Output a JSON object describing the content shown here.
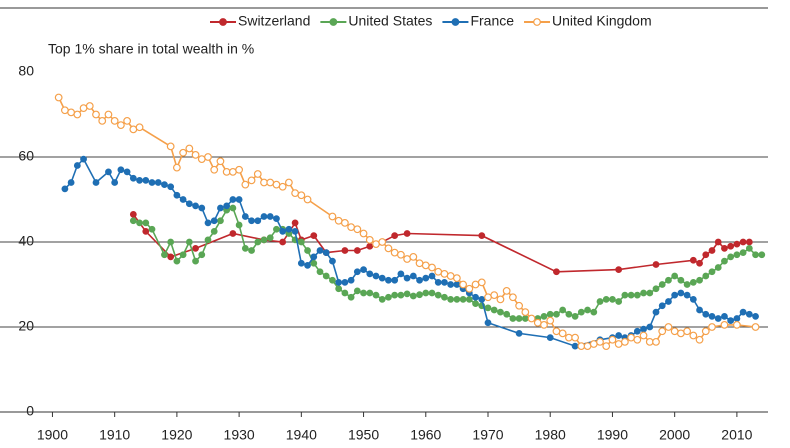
{
  "chart_data": {
    "type": "line",
    "y_label": "Top 1% share in total wealth in %",
    "xlim": [
      1898,
      2015
    ],
    "xticks": [
      1900,
      1910,
      1920,
      1930,
      1940,
      1950,
      1960,
      1970,
      1980,
      1990,
      2000,
      2010
    ],
    "ylim": [
      0,
      80
    ],
    "yticks": [
      0,
      20,
      40,
      60,
      80
    ],
    "grid": true,
    "legend": "top",
    "series": [
      {
        "name": "Switzerland",
        "color": "#c0282d",
        "marker": "filled",
        "x": [
          1913,
          1915,
          1919,
          1923,
          1929,
          1934,
          1937,
          1939,
          1940,
          1942,
          1944,
          1947,
          1949,
          1951,
          1953,
          1955,
          1957,
          1969,
          1981,
          1991,
          1997,
          2003,
          2004,
          2005,
          2006,
          2007,
          2008,
          2009,
          2010,
          2011,
          2012
        ],
        "values": [
          46.5,
          42.5,
          36.5,
          38.5,
          42,
          40.5,
          40,
          44.5,
          40.5,
          41.5,
          37.5,
          38,
          38,
          39,
          40,
          41.5,
          42,
          41.5,
          33,
          33.5,
          34.7,
          35.7,
          35,
          37,
          38,
          40,
          38.5,
          39,
          39.5,
          40,
          40
        ]
      },
      {
        "name": "United States",
        "color": "#5aa655",
        "marker": "filled",
        "x": [
          1913,
          1914,
          1915,
          1916,
          1918,
          1919,
          1920,
          1921,
          1922,
          1923,
          1924,
          1925,
          1926,
          1927,
          1928,
          1929,
          1930,
          1931,
          1932,
          1933,
          1934,
          1935,
          1936,
          1937,
          1938,
          1939,
          1940,
          1941,
          1942,
          1943,
          1944,
          1945,
          1946,
          1947,
          1948,
          1949,
          1950,
          1951,
          1952,
          1953,
          1954,
          1955,
          1956,
          1957,
          1958,
          1959,
          1960,
          1961,
          1962,
          1963,
          1964,
          1965,
          1966,
          1967,
          1968,
          1969,
          1970,
          1971,
          1972,
          1973,
          1974,
          1975,
          1976,
          1977,
          1978,
          1979,
          1980,
          1981,
          1982,
          1983,
          1984,
          1985,
          1986,
          1987,
          1988,
          1989,
          1990,
          1991,
          1992,
          1993,
          1994,
          1995,
          1996,
          1997,
          1998,
          1999,
          2000,
          2001,
          2002,
          2003,
          2004,
          2005,
          2006,
          2007,
          2008,
          2009,
          2010,
          2011,
          2012,
          2013,
          2014
        ],
        "values": [
          45,
          44.5,
          44.5,
          43,
          37,
          40,
          35.5,
          37,
          40,
          35.5,
          37,
          40.5,
          42.5,
          45,
          47.5,
          48,
          44,
          38.5,
          38,
          40,
          40.5,
          41,
          43,
          43,
          42,
          40.5,
          40,
          38,
          35,
          33,
          32,
          31,
          29,
          28,
          27,
          28.5,
          28,
          28,
          27.5,
          26.5,
          27,
          27.5,
          27.5,
          27.8,
          27.3,
          27.6,
          28,
          28,
          27.5,
          27,
          26.5,
          26.5,
          26.5,
          26.5,
          25.5,
          25,
          24.5,
          24,
          23.5,
          23,
          22,
          22,
          22,
          22,
          22,
          22.5,
          23,
          23,
          24,
          23,
          22.5,
          23.5,
          24,
          23.5,
          26,
          26.5,
          26.5,
          26,
          27.5,
          27.5,
          27.5,
          28,
          28,
          29,
          30,
          31,
          32,
          31,
          30,
          30.5,
          31,
          32,
          33,
          34,
          35.5,
          36.5,
          37,
          37.5,
          38.5,
          37,
          37
        ]
      },
      {
        "name": "France",
        "color": "#1f6fb4",
        "marker": "filled",
        "x": [
          1902,
          1903,
          1904,
          1905,
          1907,
          1909,
          1910,
          1911,
          1912,
          1913,
          1914,
          1915,
          1916,
          1917,
          1918,
          1919,
          1920,
          1921,
          1922,
          1923,
          1924,
          1925,
          1926,
          1927,
          1928,
          1929,
          1930,
          1931,
          1932,
          1933,
          1934,
          1935,
          1936,
          1937,
          1938,
          1939,
          1940,
          1941,
          1942,
          1943,
          1944,
          1945,
          1946,
          1947,
          1948,
          1949,
          1950,
          1951,
          1952,
          1953,
          1954,
          1955,
          1956,
          1957,
          1958,
          1959,
          1960,
          1961,
          1962,
          1963,
          1964,
          1965,
          1966,
          1967,
          1968,
          1969,
          1970,
          1975,
          1980,
          1984,
          1988,
          1990,
          1991,
          1992,
          1993,
          1994,
          1995,
          1996,
          1997,
          1998,
          1999,
          2000,
          2001,
          2002,
          2003,
          2004,
          2005,
          2006,
          2007,
          2008,
          2009,
          2010,
          2011,
          2012,
          2013
        ],
        "values": [
          52.5,
          54,
          58,
          59.5,
          54,
          56.5,
          54,
          57,
          56.5,
          55,
          54.5,
          54.5,
          54,
          54,
          53.5,
          53,
          51,
          50,
          49,
          48.5,
          48,
          44.5,
          45,
          48,
          48.5,
          50,
          50,
          46,
          45,
          45,
          46,
          46,
          45.5,
          42.5,
          43,
          42.5,
          35,
          34.5,
          36.5,
          38,
          37.5,
          35.5,
          30.5,
          30.5,
          31,
          33,
          33.5,
          32.5,
          32,
          31.5,
          31,
          31,
          32.5,
          31.5,
          32,
          31,
          31.5,
          32,
          30.5,
          30.5,
          30,
          30,
          29,
          28,
          27,
          26.5,
          21,
          18.5,
          17.5,
          15.5,
          17,
          17.5,
          18,
          17.5,
          18,
          19,
          19.5,
          20,
          23.5,
          25,
          26,
          27.5,
          28,
          27.5,
          26.5,
          24,
          23,
          22.5,
          22,
          22.5,
          21.5,
          22,
          23.5,
          23,
          22.5
        ]
      },
      {
        "name": "United Kingdom",
        "color": "#f5a04a",
        "marker": "open",
        "x": [
          1901,
          1902,
          1903,
          1904,
          1905,
          1906,
          1907,
          1908,
          1909,
          1910,
          1911,
          1912,
          1913,
          1914,
          1919,
          1920,
          1921,
          1922,
          1923,
          1924,
          1925,
          1926,
          1927,
          1928,
          1929,
          1930,
          1931,
          1932,
          1933,
          1934,
          1935,
          1936,
          1937,
          1938,
          1939,
          1940,
          1941,
          1945,
          1946,
          1947,
          1948,
          1949,
          1950,
          1951,
          1952,
          1953,
          1954,
          1955,
          1956,
          1957,
          1958,
          1959,
          1960,
          1961,
          1962,
          1963,
          1964,
          1965,
          1966,
          1967,
          1968,
          1969,
          1970,
          1971,
          1972,
          1973,
          1974,
          1975,
          1976,
          1977,
          1978,
          1979,
          1980,
          1981,
          1982,
          1983,
          1984,
          1985,
          1986,
          1987,
          1988,
          1989,
          1990,
          1991,
          1992,
          1993,
          1994,
          1995,
          1996,
          1997,
          1998,
          1999,
          2000,
          2001,
          2002,
          2003,
          2004,
          2005,
          2006,
          2008,
          2010,
          2013
        ],
        "values": [
          74,
          71,
          70.5,
          70,
          71.5,
          72,
          70,
          68.5,
          70,
          68.5,
          67.5,
          68.5,
          66.5,
          67,
          62.5,
          57.5,
          61,
          62,
          60.5,
          59.5,
          60,
          57,
          59,
          56.5,
          56.5,
          57,
          53.5,
          54.5,
          56,
          54,
          54,
          53.5,
          53,
          54,
          51.5,
          51,
          50,
          46,
          45,
          44.5,
          43.5,
          43,
          42,
          40.5,
          39.5,
          40,
          38.5,
          37.5,
          37,
          36,
          36.5,
          35,
          34.5,
          34,
          33,
          32.5,
          32,
          31.5,
          30,
          29,
          30,
          30.5,
          27,
          27.5,
          26.5,
          28.5,
          27,
          25,
          23.5,
          22,
          21,
          20.5,
          21.5,
          19,
          18.5,
          17.5,
          17.5,
          15.5,
          15.5,
          16,
          16.5,
          15.5,
          17,
          16,
          16.5,
          17.5,
          17,
          18,
          16.5,
          16.5,
          19,
          20,
          19,
          18.5,
          19,
          18,
          17,
          19,
          20,
          20.5,
          20.5,
          20
        ]
      }
    ]
  }
}
